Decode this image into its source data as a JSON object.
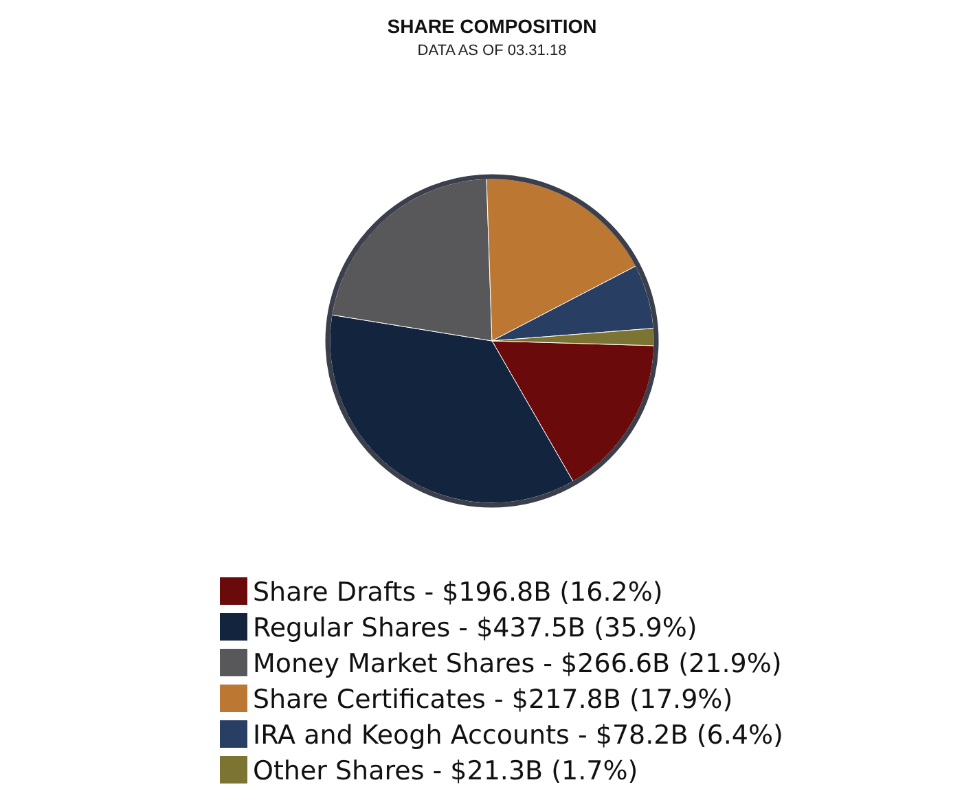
{
  "chart_data": {
    "type": "pie",
    "title": "SHARE COMPOSITION",
    "subtitle": "DATA AS OF 03.31.18",
    "categories": [
      "Share Drafts - $196.8B (16.2%)",
      "Regular Shares - $437.5B (35.9%)",
      "Money Market Shares - $266.6B (21.9%)",
      "Share Certificates - $217.8B (17.9%)",
      "IRA and Keogh Accounts - $78.2B (6.4%)",
      "Other Shares - $21.3B (1.7%)"
    ],
    "values": [
      16.2,
      35.9,
      21.9,
      17.9,
      6.4,
      1.7
    ],
    "colors": [
      "#6b0a0b",
      "#13243f",
      "#58585a",
      "#bc7733",
      "#293e63",
      "#7c7432"
    ],
    "legend": "bottom"
  }
}
